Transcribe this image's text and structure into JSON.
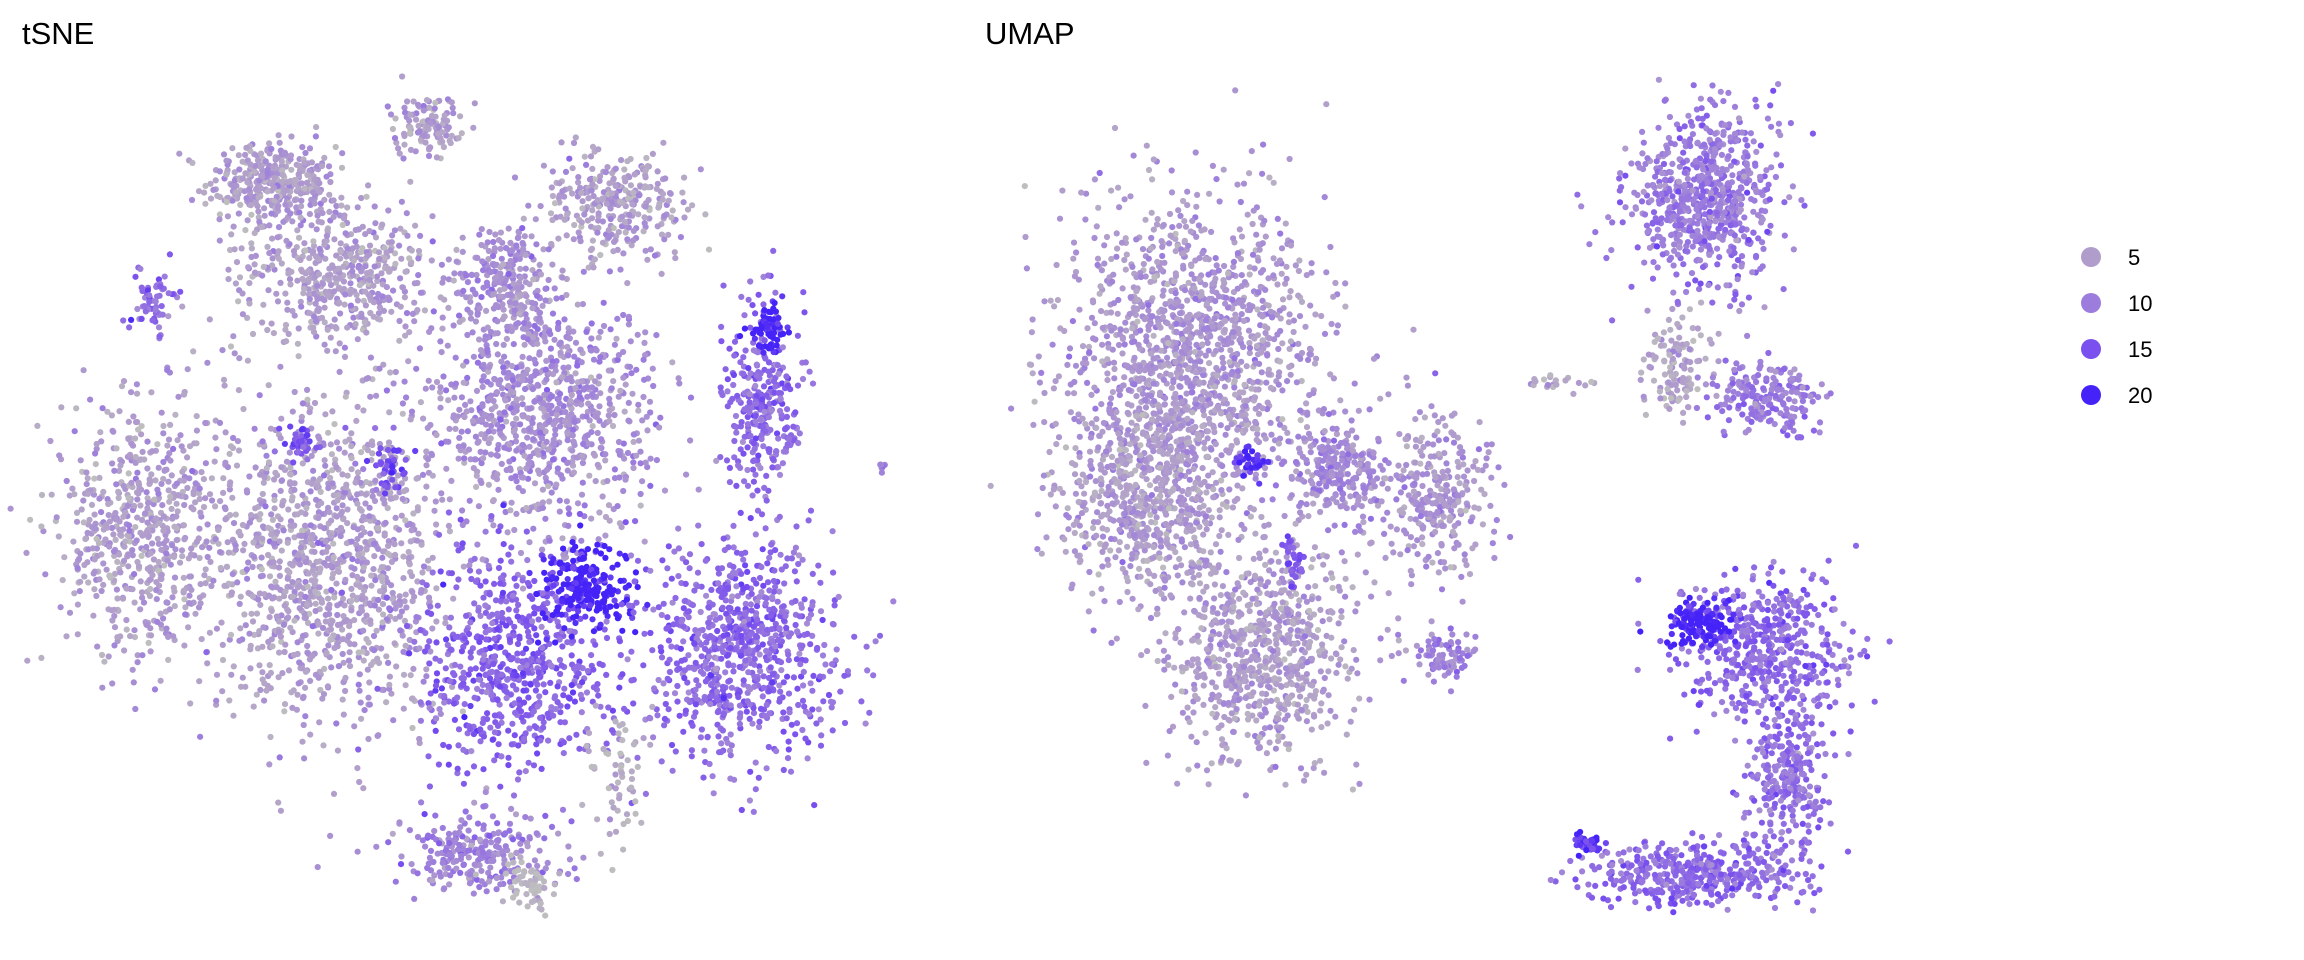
{
  "chart_data": [
    {
      "type": "scatter",
      "title": "tSNE",
      "xlabel": "",
      "ylabel": "",
      "xlim": [
        -45,
        45
      ],
      "ylim": [
        -45,
        45
      ],
      "grid": false,
      "clusters": [
        {
          "center": [
            -22.5,
            35.4
          ],
          "spread": [
            6.4,
            4.0
          ],
          "n": 350,
          "value": 5
        },
        {
          "center": [
            -5.6,
            41.8
          ],
          "spread": [
            3.2,
            3.2
          ],
          "n": 120,
          "value": 5
        },
        {
          "center": [
            15.3,
            33.0
          ],
          "spread": [
            8.0,
            5.6
          ],
          "n": 300,
          "value": 5
        },
        {
          "center": [
            -15.3,
            25.7
          ],
          "spread": [
            9.6,
            7.2
          ],
          "n": 500,
          "value": 5
        },
        {
          "center": [
            3.2,
            24.9
          ],
          "spread": [
            5.6,
            5.6
          ],
          "n": 250,
          "value": 7
        },
        {
          "center": [
            -35.4,
            22.5
          ],
          "spread": [
            2.4,
            3.2
          ],
          "n": 60,
          "value": 11
        },
        {
          "center": [
            31.4,
            10.5
          ],
          "spread": [
            4.0,
            10.5
          ],
          "n": 300,
          "value": 12
        },
        {
          "center": [
            31.7,
            19.3
          ],
          "spread": [
            1.6,
            2.4
          ],
          "n": 60,
          "value": 20
        },
        {
          "center": [
            7.2,
            10.5
          ],
          "spread": [
            11.2,
            11.2
          ],
          "n": 900,
          "value": 7
        },
        {
          "center": [
            -37.0,
            -2.4
          ],
          "spread": [
            8.0,
            12.8
          ],
          "n": 600,
          "value": 5
        },
        {
          "center": [
            -16.9,
            -5.6
          ],
          "spread": [
            12.0,
            16.0
          ],
          "n": 1200,
          "value": 5
        },
        {
          "center": [
            -19.3,
            7.2
          ],
          "spread": [
            1.6,
            1.3
          ],
          "n": 40,
          "value": 15
        },
        {
          "center": [
            -9.6,
            4.0
          ],
          "spread": [
            1.6,
            2.0
          ],
          "n": 40,
          "value": 16
        },
        {
          "center": [
            4.0,
            -16.9
          ],
          "spread": [
            9.6,
            11.2
          ],
          "n": 700,
          "value": 13
        },
        {
          "center": [
            12.0,
            -8.8
          ],
          "spread": [
            4.8,
            4.0
          ],
          "n": 200,
          "value": 20
        },
        {
          "center": [
            28.9,
            -15.3
          ],
          "spread": [
            9.6,
            10.5
          ],
          "n": 800,
          "value": 12
        },
        {
          "center": [
            0.0,
            -37.8
          ],
          "spread": [
            8.0,
            4.0
          ],
          "n": 250,
          "value": 9
        },
        {
          "center": [
            5.6,
            -41.0
          ],
          "spread": [
            2.4,
            2.4
          ],
          "n": 60,
          "value": 1
        },
        {
          "center": [
            15.3,
            -29.7
          ],
          "spread": [
            3.2,
            6.4
          ],
          "n": 60,
          "value": 2
        },
        {
          "center": [
            44.2,
            4.3
          ],
          "spread": [
            0.5,
            0.8
          ],
          "n": 8,
          "value": 9
        }
      ]
    },
    {
      "type": "scatter",
      "title": "UMAP",
      "xlabel": "",
      "ylabel": "",
      "xlim": [
        -45,
        45
      ],
      "ylim": [
        -45,
        45
      ],
      "grid": false,
      "clusters": [
        {
          "center": [
            28.1,
            33.8
          ],
          "spread": [
            7.2,
            8.8
          ],
          "n": 700,
          "value": 10
        },
        {
          "center": [
            24.9,
            15.3
          ],
          "spread": [
            3.2,
            4.8
          ],
          "n": 120,
          "value": 4
        },
        {
          "center": [
            35.4,
            12.0
          ],
          "spread": [
            5.6,
            3.2
          ],
          "n": 200,
          "value": 10
        },
        {
          "center": [
            -28.1,
            16.9
          ],
          "spread": [
            12.8,
            16.0
          ],
          "n": 1400,
          "value": 6
        },
        {
          "center": [
            -33.0,
            0.8
          ],
          "spread": [
            8.0,
            9.6
          ],
          "n": 600,
          "value": 5
        },
        {
          "center": [
            -20.1,
            -15.3
          ],
          "spread": [
            9.6,
            11.2
          ],
          "n": 800,
          "value": 5
        },
        {
          "center": [
            -12.0,
            4.0
          ],
          "spread": [
            4.8,
            4.8
          ],
          "n": 250,
          "value": 8
        },
        {
          "center": [
            -1.6,
            0.8
          ],
          "spread": [
            5.6,
            8.0
          ],
          "n": 300,
          "value": 6
        },
        {
          "center": [
            0.0,
            -16.1
          ],
          "spread": [
            3.2,
            2.4
          ],
          "n": 80,
          "value": 9
        },
        {
          "center": [
            -21.7,
            4.8
          ],
          "spread": [
            1.6,
            1.6
          ],
          "n": 40,
          "value": 18
        },
        {
          "center": [
            -16.9,
            -5.6
          ],
          "spread": [
            1.0,
            2.4
          ],
          "n": 30,
          "value": 14
        },
        {
          "center": [
            34.6,
            -15.3
          ],
          "spread": [
            8.8,
            7.2
          ],
          "n": 500,
          "value": 12
        },
        {
          "center": [
            27.3,
            -12.9
          ],
          "spread": [
            3.2,
            2.4
          ],
          "n": 120,
          "value": 20
        },
        {
          "center": [
            37.0,
            -29.7
          ],
          "spread": [
            4.0,
            8.0
          ],
          "n": 300,
          "value": 11
        },
        {
          "center": [
            26.5,
            -40.2
          ],
          "spread": [
            10.5,
            3.2
          ],
          "n": 400,
          "value": 12
        },
        {
          "center": [
            15.3,
            -37.0
          ],
          "spread": [
            1.6,
            1.0
          ],
          "n": 40,
          "value": 18
        },
        {
          "center": [
            12.0,
            13.7
          ],
          "spread": [
            4.0,
            1.0
          ],
          "n": 20,
          "value": 3
        }
      ]
    }
  ],
  "legend": {
    "placement": "right",
    "entries": [
      {
        "label": "5",
        "value": 5,
        "color": "#b19dcc"
      },
      {
        "label": "10",
        "value": 10,
        "color": "#9c7ddd"
      },
      {
        "label": "15",
        "value": 15,
        "color": "#7a50ee"
      },
      {
        "label": "20",
        "value": 20,
        "color": "#4422f8"
      }
    ],
    "low_color": "#bebebe"
  }
}
